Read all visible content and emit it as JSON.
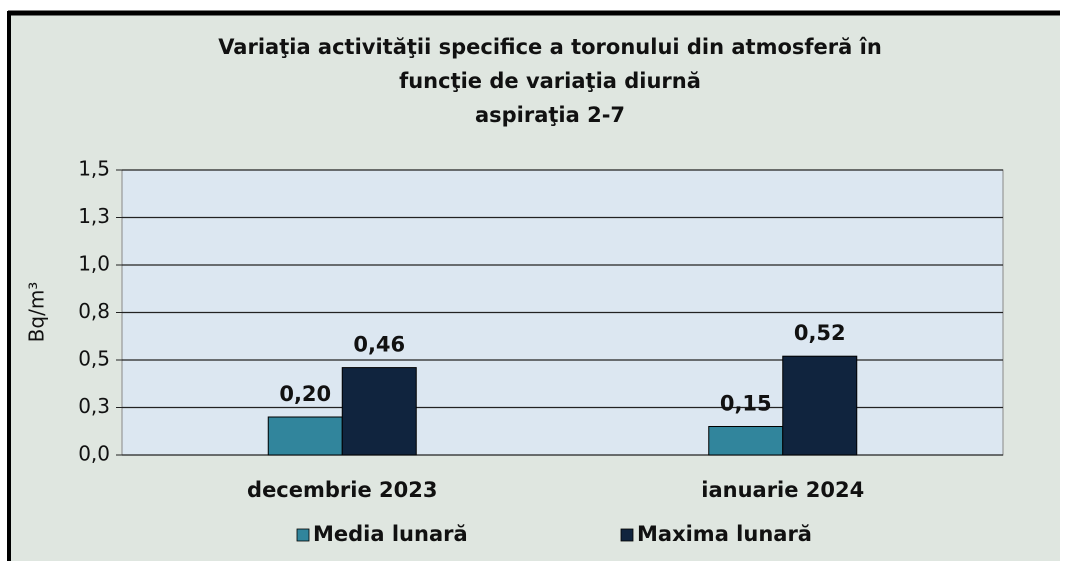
{
  "chart_data": {
    "type": "bar",
    "title": [
      "Variaţia activităţii specifice a toronului din atmosferă în",
      "funcţie de variaţia diurnă",
      "aspiraţia 2-7"
    ],
    "y_label": "Bq/m³",
    "categories": [
      "decembrie 2023",
      "ianuarie 2024"
    ],
    "series": [
      {
        "name": "Media lunară",
        "color": "#31859c",
        "values": [
          0.2,
          0.15
        ],
        "value_labels": [
          "0,20",
          "0,15"
        ]
      },
      {
        "name": "Maxima lunară",
        "color": "#10243e",
        "values": [
          0.46,
          0.52
        ],
        "value_labels": [
          "0,46",
          "0,52"
        ]
      }
    ],
    "ylim": [
      0,
      1.5
    ],
    "yticks": [
      {
        "value": 0,
        "label": "0,0"
      },
      {
        "value": 0.25,
        "label": "0,3"
      },
      {
        "value": 0.5,
        "label": "0,5"
      },
      {
        "value": 0.75,
        "label": "0,8"
      },
      {
        "value": 1.0,
        "label": "1,0"
      },
      {
        "value": 1.25,
        "label": "1,3"
      },
      {
        "value": 1.5,
        "label": "1,5"
      }
    ],
    "grid": true,
    "legend": "bottom"
  }
}
